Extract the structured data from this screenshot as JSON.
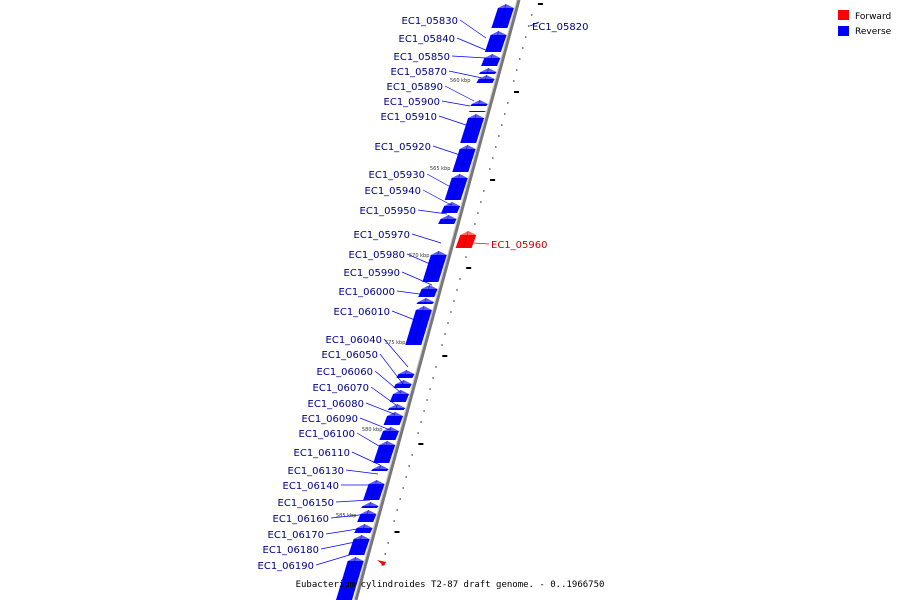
{
  "legend": {
    "items": [
      {
        "label": "Forward",
        "color": "#ff0000"
      },
      {
        "label": "Reverse",
        "color": "#0000ff"
      }
    ]
  },
  "caption": "Eubacterium cylindroides T2-87 draft genome. - 0..1966750",
  "ruler_labels": [
    "560 kbp",
    "565 kbp",
    "570 kbp",
    "575 kbp",
    "580 kbp",
    "585 kbp"
  ],
  "colors": {
    "forward": "#ff0000",
    "reverse": "#0000ff",
    "backbone": "#888888",
    "label_text": "#00008b",
    "forward_text": "#cc0000"
  },
  "genes": [
    {
      "id": "EC1_05820",
      "strand": "reverse"
    },
    {
      "id": "EC1_05830",
      "strand": "reverse"
    },
    {
      "id": "EC1_05840",
      "strand": "reverse"
    },
    {
      "id": "EC1_05850",
      "strand": "reverse"
    },
    {
      "id": "EC1_05870",
      "strand": "reverse"
    },
    {
      "id": "EC1_05890",
      "strand": "reverse"
    },
    {
      "id": "EC1_05900",
      "strand": "reverse"
    },
    {
      "id": "EC1_05910",
      "strand": "reverse"
    },
    {
      "id": "EC1_05920",
      "strand": "reverse"
    },
    {
      "id": "EC1_05930",
      "strand": "reverse"
    },
    {
      "id": "EC1_05940",
      "strand": "reverse"
    },
    {
      "id": "EC1_05950",
      "strand": "reverse"
    },
    {
      "id": "EC1_05960",
      "strand": "forward"
    },
    {
      "id": "EC1_05970",
      "strand": "reverse"
    },
    {
      "id": "EC1_05980",
      "strand": "reverse"
    },
    {
      "id": "EC1_05990",
      "strand": "reverse"
    },
    {
      "id": "EC1_06000",
      "strand": "reverse"
    },
    {
      "id": "EC1_06010",
      "strand": "reverse"
    },
    {
      "id": "EC1_06040",
      "strand": "reverse"
    },
    {
      "id": "EC1_06050",
      "strand": "reverse"
    },
    {
      "id": "EC1_06060",
      "strand": "reverse"
    },
    {
      "id": "EC1_06070",
      "strand": "reverse"
    },
    {
      "id": "EC1_06080",
      "strand": "reverse"
    },
    {
      "id": "EC1_06090",
      "strand": "reverse"
    },
    {
      "id": "EC1_06100",
      "strand": "reverse"
    },
    {
      "id": "EC1_06110",
      "strand": "reverse"
    },
    {
      "id": "EC1_06130",
      "strand": "reverse"
    },
    {
      "id": "EC1_06140",
      "strand": "reverse"
    },
    {
      "id": "EC1_06150",
      "strand": "reverse"
    },
    {
      "id": "EC1_06160",
      "strand": "reverse"
    },
    {
      "id": "EC1_06170",
      "strand": "reverse"
    },
    {
      "id": "EC1_06180",
      "strand": "reverse"
    },
    {
      "id": "EC1_06190",
      "strand": "reverse"
    }
  ]
}
